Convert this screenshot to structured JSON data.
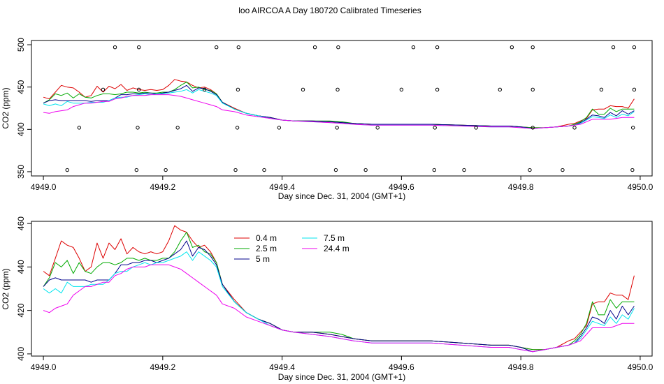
{
  "figure_title": "loo AIRCOA A  Day 180720  Calibrated Timeseries",
  "chart_data": [
    {
      "type": "line",
      "xlabel": "Day since Dec. 31, 2004 (GMT+1)",
      "ylabel": "CO2 (ppm)",
      "xlim": [
        4948.98,
        4950.02
      ],
      "ylim": [
        345,
        505
      ],
      "x_ticks": [
        4949.0,
        4949.2,
        4949.4,
        4949.6,
        4949.8,
        4950.0
      ],
      "x_tick_labels": [
        "4949.0",
        "4949.2",
        "4949.4",
        "4949.6",
        "4949.8",
        "4950.0"
      ],
      "y_ticks": [
        350,
        400,
        450,
        500
      ],
      "y_tick_labels": [
        "350",
        "400",
        "450",
        "500"
      ],
      "x": [
        4949.0,
        4949.01,
        4949.02,
        4949.03,
        4949.04,
        4949.05,
        4949.06,
        4949.07,
        4949.08,
        4949.09,
        4949.1,
        4949.11,
        4949.12,
        4949.13,
        4949.14,
        4949.15,
        4949.16,
        4949.17,
        4949.18,
        4949.19,
        4949.2,
        4949.21,
        4949.22,
        4949.23,
        4949.24,
        4949.25,
        4949.26,
        4949.27,
        4949.28,
        4949.29,
        4949.3,
        4949.32,
        4949.34,
        4949.36,
        4949.38,
        4949.4,
        4949.42,
        4949.45,
        4949.48,
        4949.5,
        4949.52,
        4949.55,
        4949.6,
        4949.65,
        4949.7,
        4949.75,
        4949.78,
        4949.8,
        4949.82,
        4949.84,
        4949.86,
        4949.88,
        4949.89,
        4949.9,
        4949.91,
        4949.92,
        4949.93,
        4949.94,
        4949.95,
        4949.96,
        4949.97,
        4949.98,
        4949.99
      ],
      "series": [
        {
          "name": "0.4 m",
          "color": "#dd0000",
          "values": [
            438,
            436,
            444,
            452,
            450,
            449,
            444,
            438,
            440,
            451,
            444,
            451,
            448,
            453,
            446,
            449,
            447,
            446,
            447,
            446,
            447,
            452,
            459,
            457,
            456,
            452,
            449,
            450,
            447,
            442,
            432,
            425,
            419,
            416,
            414,
            411,
            410,
            410,
            409,
            408,
            407,
            406,
            406,
            406,
            405,
            404,
            404,
            403,
            402,
            402,
            403,
            406,
            407,
            410,
            413,
            423,
            424,
            424,
            428,
            427,
            427,
            425,
            436
          ]
        },
        {
          "name": "2.5 m",
          "color": "#00aa00",
          "values": [
            431,
            435,
            442,
            440,
            443,
            437,
            442,
            438,
            437,
            440,
            442,
            442,
            441,
            442,
            444,
            444,
            443,
            444,
            443,
            443,
            444,
            444,
            447,
            452,
            456,
            449,
            450,
            447,
            446,
            442,
            432,
            424,
            419,
            416,
            414,
            411,
            410,
            410,
            410,
            409,
            407,
            406,
            406,
            406,
            405,
            404,
            404,
            403,
            402,
            402,
            403,
            404,
            406,
            409,
            414,
            424,
            418,
            418,
            425,
            421,
            424,
            424,
            424
          ]
        },
        {
          "name": "5 m",
          "color": "#00008b",
          "values": [
            431,
            434,
            435,
            434,
            434,
            434,
            434,
            434,
            433,
            434,
            434,
            434,
            437,
            441,
            441,
            442,
            442,
            443,
            443,
            442,
            443,
            444,
            446,
            448,
            452,
            445,
            449,
            448,
            445,
            441,
            432,
            424,
            419,
            416,
            414,
            411,
            410,
            410,
            409,
            408,
            407,
            406,
            406,
            406,
            405,
            404,
            404,
            403,
            401,
            402,
            403,
            404,
            405,
            408,
            412,
            417,
            416,
            414,
            420,
            416,
            422,
            418,
            422
          ]
        },
        {
          "name": "7.5 m",
          "color": "#00e5ee",
          "values": [
            430,
            428,
            430,
            428,
            433,
            431,
            431,
            431,
            432,
            432,
            432,
            434,
            437,
            438,
            438,
            440,
            441,
            442,
            441,
            442,
            442,
            443,
            444,
            445,
            447,
            443,
            447,
            445,
            443,
            440,
            431,
            424,
            419,
            416,
            413,
            411,
            410,
            409,
            408,
            407,
            406,
            405,
            405,
            405,
            404,
            403,
            403,
            402,
            401,
            402,
            403,
            404,
            405,
            407,
            411,
            415,
            414,
            413,
            417,
            414,
            418,
            416,
            421
          ]
        },
        {
          "name": "24.4 m",
          "color": "#ee00ee",
          "values": [
            420,
            419,
            421,
            422,
            423,
            427,
            429,
            431,
            431,
            432,
            433,
            433,
            436,
            437,
            439,
            440,
            440,
            440,
            441,
            441,
            441,
            441,
            440,
            439,
            437,
            435,
            433,
            431,
            429,
            427,
            423,
            421,
            417,
            415,
            413,
            411,
            410,
            409,
            408,
            407,
            406,
            405,
            405,
            405,
            404,
            403,
            403,
            402,
            401,
            402,
            403,
            404,
            405,
            406,
            409,
            412,
            412,
            412,
            412,
            413,
            414,
            414,
            414
          ]
        }
      ],
      "markers": {
        "shape": "open-circle",
        "x": [
          4949.04,
          4949.06,
          4949.1,
          4949.12,
          4949.156,
          4949.158,
          4949.16,
          4949.16,
          4949.205,
          4949.225,
          4949.27,
          4949.29,
          4949.322,
          4949.325,
          4949.326,
          4949.327,
          4949.37,
          4949.395,
          4949.435,
          4949.455,
          4949.49,
          4949.492,
          4949.493,
          4949.494,
          4949.54,
          4949.56,
          4949.6,
          4949.62,
          4949.655,
          4949.656,
          4949.66,
          4949.66,
          4949.705,
          4949.725,
          4949.765,
          4949.785,
          4949.815,
          4949.82,
          4949.82,
          4949.82,
          4949.87,
          4949.89,
          4949.935,
          4949.955,
          4949.987,
          4949.988,
          4949.99,
          4949.99
        ],
        "y": [
          352,
          402,
          447,
          497,
          352,
          402,
          447,
          497,
          352,
          402,
          447,
          497,
          352,
          402,
          447,
          497,
          352,
          402,
          447,
          497,
          352,
          402,
          447,
          497,
          352,
          402,
          447,
          497,
          352,
          402,
          447,
          497,
          352,
          402,
          447,
          497,
          352,
          402,
          447,
          497,
          352,
          402,
          447,
          497,
          352,
          402,
          447,
          497
        ]
      }
    },
    {
      "type": "line",
      "xlabel": "Day since Dec. 31, 2004 (GMT+1)",
      "ylabel": "CO2 (ppm)",
      "xlim": [
        4948.98,
        4950.02
      ],
      "ylim": [
        399,
        461
      ],
      "x_ticks": [
        4949.0,
        4949.2,
        4949.4,
        4949.6,
        4949.8,
        4950.0
      ],
      "x_tick_labels": [
        "4949.0",
        "4949.2",
        "4949.4",
        "4949.6",
        "4949.8",
        "4950.0"
      ],
      "y_ticks": [
        400,
        420,
        440,
        460
      ],
      "y_tick_labels": [
        "400",
        "420",
        "440",
        "460"
      ],
      "legend": {
        "placement": "top-center",
        "entries": [
          {
            "label": "0.4 m",
            "color": "#dd0000"
          },
          {
            "label": "2.5 m",
            "color": "#00aa00"
          },
          {
            "label": "5 m",
            "color": "#00008b"
          },
          {
            "label": "7.5 m",
            "color": "#00e5ee"
          },
          {
            "label": "24.4 m",
            "color": "#ee00ee"
          }
        ]
      },
      "series_ref": "same as chart 1"
    }
  ]
}
